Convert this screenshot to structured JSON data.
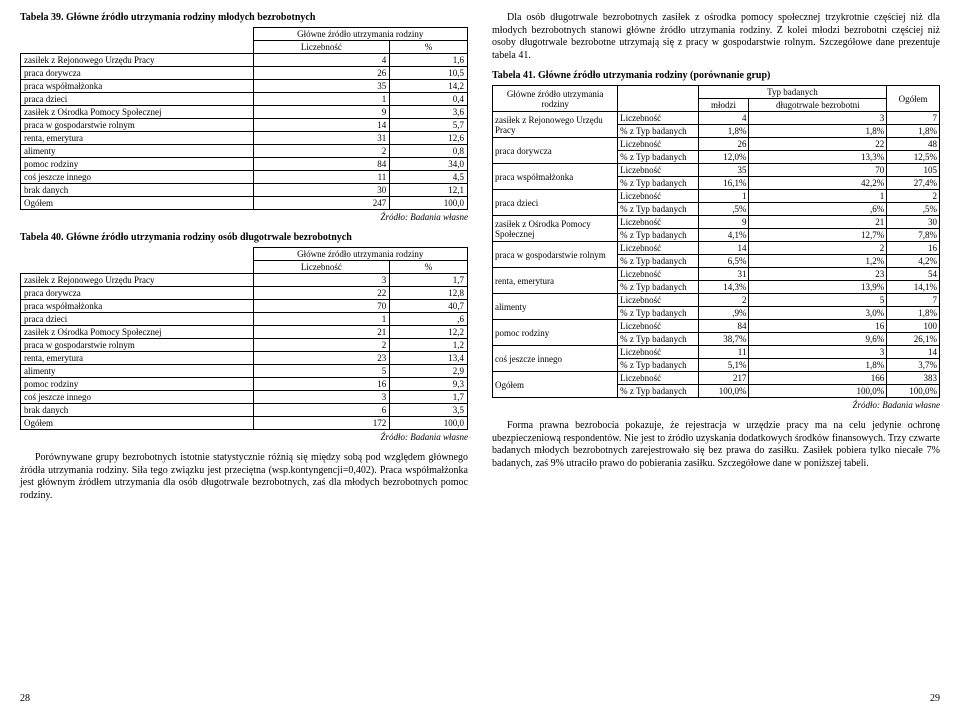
{
  "left": {
    "t39": {
      "caption": "Tabela 39. Główne źródło utrzymania rodziny młodych bezrobotnych",
      "header_main": "Główne źródło utrzymania rodziny",
      "header_count": "Liczebność",
      "header_pct": "%",
      "rows": [
        [
          "zasiłek z Rejonowego Urzędu Pracy",
          "4",
          "1,6"
        ],
        [
          "praca dorywcza",
          "26",
          "10,5"
        ],
        [
          "praca współmałżonka",
          "35",
          "14,2"
        ],
        [
          "praca dzieci",
          "1",
          "0,4"
        ],
        [
          "zasiłek z Ośrodka Pomocy Społecznej",
          "9",
          "3,6"
        ],
        [
          "praca w gospodarstwie rolnym",
          "14",
          "5,7"
        ],
        [
          "renta, emerytura",
          "31",
          "12,6"
        ],
        [
          "alimenty",
          "2",
          "0,8"
        ],
        [
          "pomoc rodziny",
          "84",
          "34,0"
        ],
        [
          "coś jeszcze innego",
          "11",
          "4,5"
        ],
        [
          "brak danych",
          "30",
          "12,1"
        ],
        [
          "Ogółem",
          "247",
          "100,0"
        ]
      ],
      "source": "Źródło: Badania własne"
    },
    "t40": {
      "caption": "Tabela 40. Główne źródło utrzymania rodziny osób długotrwale bezrobotnych",
      "header_main": "Główne źródło utrzymania rodziny",
      "header_count": "Liczebność",
      "header_pct": "%",
      "rows": [
        [
          "zasiłek z Rejonowego Urzędu Pracy",
          "3",
          "1,7"
        ],
        [
          "praca dorywcza",
          "22",
          "12,8"
        ],
        [
          "praca współmałżonka",
          "70",
          "40,7"
        ],
        [
          "praca dzieci",
          "1",
          ",6"
        ],
        [
          "zasiłek z Ośrodka Pomocy Społecznej",
          "21",
          "12,2"
        ],
        [
          "praca w gospodarstwie rolnym",
          "2",
          "1,2"
        ],
        [
          "renta, emerytura",
          "23",
          "13,4"
        ],
        [
          "alimenty",
          "5",
          "2,9"
        ],
        [
          "pomoc rodziny",
          "16",
          "9,3"
        ],
        [
          "coś jeszcze innego",
          "3",
          "1,7"
        ],
        [
          "brak danych",
          "6",
          "3,5"
        ],
        [
          "Ogółem",
          "172",
          "100,0"
        ]
      ],
      "source": "Źródło: Badania własne"
    },
    "para": "Porównywane grupy bezrobotnych istotnie statystycznie różnią się między sobą pod względem głównego źródła utrzymania rodziny. Siła tego związku jest przeciętna (wsp.kontyngencji=0,402). Praca współmałżonka jest głównym źródłem utrzymania dla osób długotrwale bezrobotnych, zaś dla młodych bezrobotnych pomoc rodziny.",
    "pagenum": "28"
  },
  "right": {
    "para1": "Dla osób długotrwale bezrobotnych zasiłek z ośrodka pomocy społecznej trzykrotnie częściej niż dla młodych bezrobotnych stanowi główne źródło utrzymania rodziny. Z kolei młodzi bezrobotni częściej niż osoby długotrwale bezrobotne utrzymają się z pracy w gospodarstwie rolnym. Szczegółowe dane prezentuje tabela 41.",
    "t41": {
      "caption": "Tabela 41. Główne źródło utrzymania rodziny (porównanie grup)",
      "header_left": "Główne źródło utrzymania rodziny",
      "header_type": "Typ badanych",
      "header_young": "młodzi",
      "header_long": "długotrwale bezrobotni",
      "header_total": "Ogółem",
      "label_count": "Liczebność",
      "label_pct": "% z Typ badanych",
      "rows": [
        {
          "name": "zasiłek z Rejonowego Urzędu Pracy",
          "c": [
            "4",
            "3",
            "7"
          ],
          "p": [
            "1,8%",
            "1,8%",
            "1,8%"
          ]
        },
        {
          "name": "praca dorywcza",
          "c": [
            "26",
            "22",
            "48"
          ],
          "p": [
            "12,0%",
            "13,3%",
            "12,5%"
          ]
        },
        {
          "name": "praca współmałżonka",
          "c": [
            "35",
            "70",
            "105"
          ],
          "p": [
            "16,1%",
            "42,2%",
            "27,4%"
          ]
        },
        {
          "name": "praca dzieci",
          "c": [
            "1",
            "1",
            "2"
          ],
          "p": [
            ",5%",
            ",6%",
            ",5%"
          ]
        },
        {
          "name": "zasiłek z Ośrodka Pomocy Społecznej",
          "c": [
            "9",
            "21",
            "30"
          ],
          "p": [
            "4,1%",
            "12,7%",
            "7,8%"
          ]
        },
        {
          "name": "praca w gospodarstwie rolnym",
          "c": [
            "14",
            "2",
            "16"
          ],
          "p": [
            "6,5%",
            "1,2%",
            "4,2%"
          ]
        },
        {
          "name": "renta, emerytura",
          "c": [
            "31",
            "23",
            "54"
          ],
          "p": [
            "14,3%",
            "13,9%",
            "14,1%"
          ]
        },
        {
          "name": "alimenty",
          "c": [
            "2",
            "5",
            "7"
          ],
          "p": [
            ",9%",
            "3,0%",
            "1,8%"
          ]
        },
        {
          "name": "pomoc rodziny",
          "c": [
            "84",
            "16",
            "100"
          ],
          "p": [
            "38,7%",
            "9,6%",
            "26,1%"
          ]
        },
        {
          "name": "coś jeszcze innego",
          "c": [
            "11",
            "3",
            "14"
          ],
          "p": [
            "5,1%",
            "1,8%",
            "3,7%"
          ]
        },
        {
          "name": "Ogółem",
          "c": [
            "217",
            "166",
            "383"
          ],
          "p": [
            "100,0%",
            "100,0%",
            "100,0%"
          ]
        }
      ],
      "source": "Źródło: Badania własne"
    },
    "para2": "Forma prawna bezrobocia pokazuje, że rejestracja w urzędzie pracy ma na celu jedynie ochronę ubezpieczeniową respondentów. Nie jest to źródło uzyskania dodatkowych środków finansowych. Trzy czwarte badanych młodych bezrobotnych zarejestrowało się bez prawa do zasiłku. Zasiłek pobiera tylko niecałe 7% badanych, zaś 9% utraciło prawo do pobierania zasiłku. Szczegółowe dane w poniższej tabeli.",
    "pagenum": "29"
  }
}
